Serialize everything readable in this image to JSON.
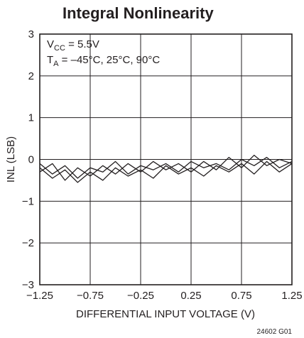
{
  "chart_data": {
    "type": "line",
    "title": "Integral Nonlinearity",
    "xlabel": "DIFFERENTIAL INPUT VOLTAGE (V)",
    "ylabel": "INL (LSB)",
    "xlim": [
      -1.25,
      1.25
    ],
    "ylim": [
      -3,
      3
    ],
    "x_ticks": [
      -1.25,
      -0.75,
      -0.25,
      0.25,
      0.75,
      1.25
    ],
    "x_tick_labels": [
      "−1.25",
      "−0.75",
      "−0.25",
      "0.25",
      "0.75",
      "1.25"
    ],
    "y_ticks": [
      3,
      2,
      1,
      0,
      -1,
      -2,
      -3
    ],
    "y_tick_labels": [
      "3",
      "2",
      "1",
      "0",
      "−1",
      "−2",
      "−3"
    ],
    "grid": true,
    "annotations": {
      "vcc": {
        "main": "V",
        "sub": "CC",
        "rest": " = 5.5V"
      },
      "ta": {
        "main": "T",
        "sub": "A",
        "rest": " = –45°C, 25°C, 90°C"
      }
    },
    "figure_code": "24602 G01",
    "series": [
      {
        "x": [
          -1.25,
          -1.125,
          -1.0,
          -0.875,
          -0.75,
          -0.625,
          -0.5,
          -0.375,
          -0.25,
          -0.125,
          0.0,
          0.125,
          0.25,
          0.375,
          0.5,
          0.625,
          0.75,
          0.875,
          1.0,
          1.125,
          1.25
        ],
        "values": [
          -0.1,
          -0.35,
          -0.15,
          -0.45,
          -0.2,
          -0.3,
          -0.05,
          -0.35,
          -0.15,
          -0.25,
          -0.1,
          -0.3,
          -0.05,
          -0.2,
          -0.1,
          -0.25,
          0.0,
          -0.15,
          0.05,
          -0.2,
          -0.05
        ]
      },
      {
        "x": [
          -1.25,
          -1.125,
          -1.0,
          -0.875,
          -0.75,
          -0.625,
          -0.5,
          -0.375,
          -0.25,
          -0.125,
          0.0,
          0.125,
          0.25,
          0.375,
          0.5,
          0.625,
          0.75,
          0.875,
          1.0,
          1.125,
          1.25
        ],
        "values": [
          -0.3,
          -0.1,
          -0.5,
          -0.2,
          -0.4,
          -0.15,
          -0.35,
          -0.1,
          -0.3,
          -0.05,
          -0.25,
          -0.1,
          -0.3,
          -0.05,
          -0.25,
          0.05,
          -0.2,
          0.1,
          -0.15,
          0.0,
          -0.1
        ]
      },
      {
        "x": [
          -1.25,
          -1.125,
          -1.0,
          -0.875,
          -0.75,
          -0.625,
          -0.5,
          -0.375,
          -0.25,
          -0.125,
          0.0,
          0.125,
          0.25,
          0.375,
          0.5,
          0.625,
          0.75,
          0.875,
          1.0,
          1.125,
          1.25
        ],
        "values": [
          -0.2,
          -0.45,
          -0.25,
          -0.55,
          -0.3,
          -0.5,
          -0.2,
          -0.4,
          -0.25,
          -0.45,
          -0.15,
          -0.35,
          -0.2,
          -0.4,
          -0.15,
          -0.3,
          -0.1,
          -0.35,
          -0.05,
          -0.3,
          -0.1
        ]
      }
    ]
  }
}
